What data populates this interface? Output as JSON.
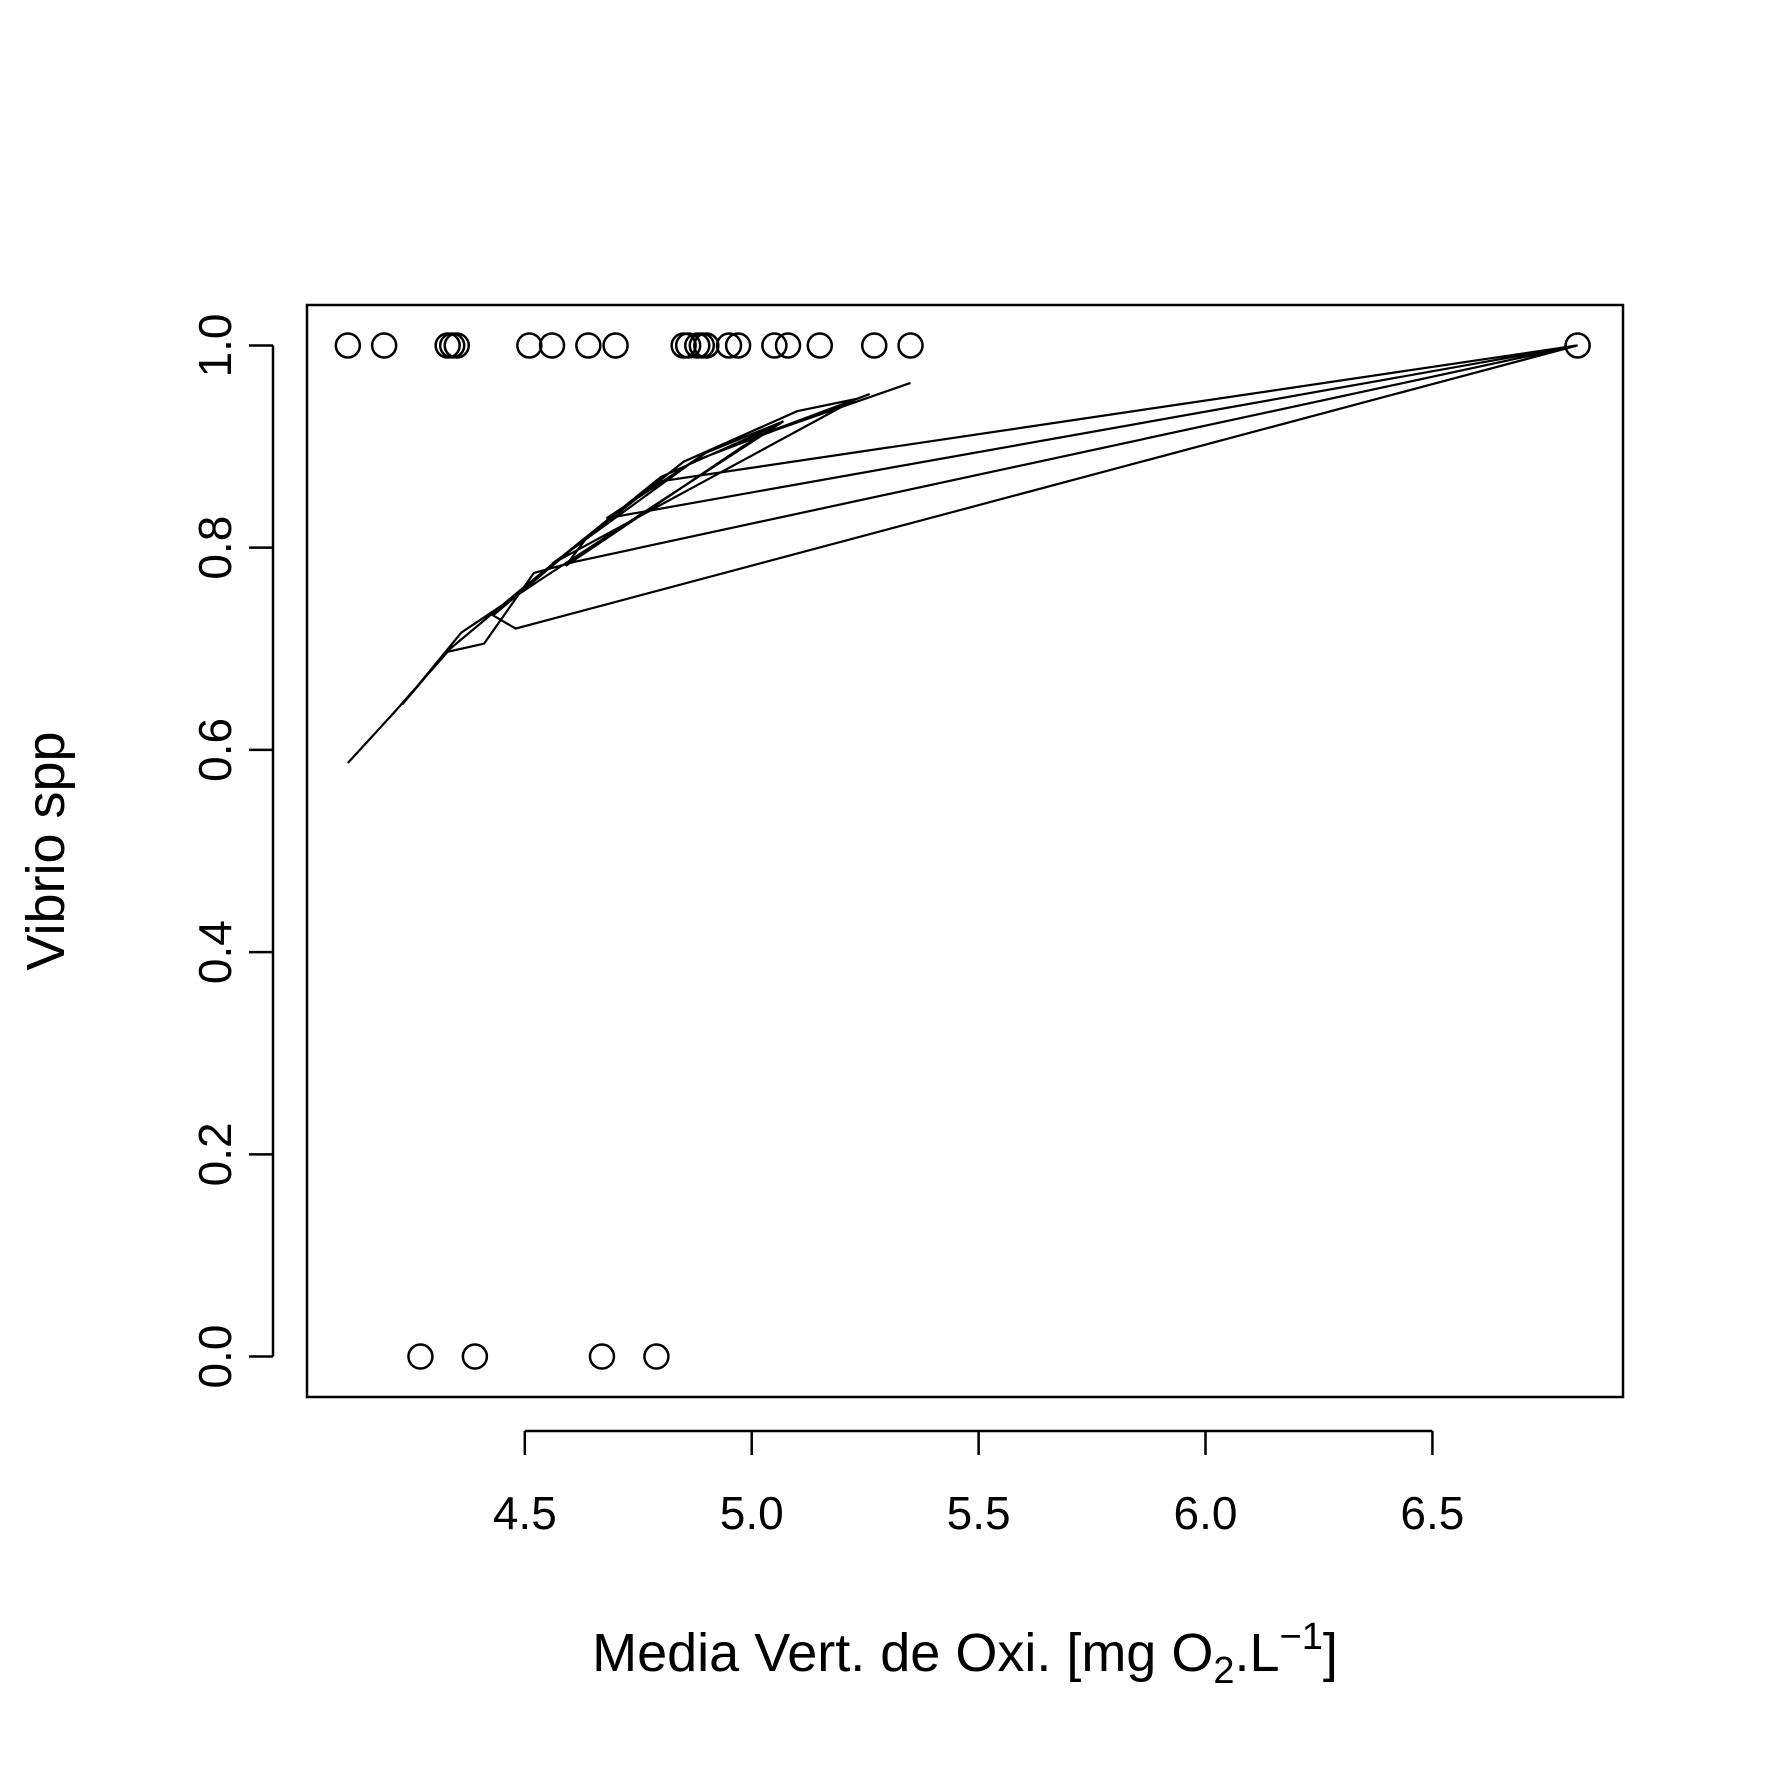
{
  "chart_data": {
    "type": "scatter",
    "title": "",
    "xlabel": {
      "main": "Media Vert. de Oxi. [mg O",
      "sub": "2",
      "mid": ".L",
      "sup": "−1",
      "end": "]"
    },
    "ylabel": "Vibrio spp",
    "xlim": [
      4.02,
      6.92
    ],
    "ylim": [
      -0.04,
      1.04
    ],
    "x_ticks": [
      4.5,
      5.0,
      5.5,
      6.0,
      6.5
    ],
    "x_tick_labels": [
      "4.5",
      "5.0",
      "5.5",
      "6.0",
      "6.5"
    ],
    "y_ticks": [
      0.0,
      0.2,
      0.4,
      0.6,
      0.8,
      1.0
    ],
    "y_tick_labels": [
      "0.0",
      "0.2",
      "0.4",
      "0.6",
      "0.8",
      "1.0"
    ],
    "grid": false,
    "legend": "none",
    "colors": {
      "points": "#000000",
      "line": "#000000",
      "axes": "#000000",
      "background": "#ffffff"
    },
    "points": [
      {
        "x": 4.11,
        "y": 1
      },
      {
        "x": 4.19,
        "y": 1
      },
      {
        "x": 4.33,
        "y": 1
      },
      {
        "x": 4.34,
        "y": 1
      },
      {
        "x": 4.35,
        "y": 1
      },
      {
        "x": 4.51,
        "y": 1
      },
      {
        "x": 4.56,
        "y": 1
      },
      {
        "x": 4.64,
        "y": 1
      },
      {
        "x": 4.7,
        "y": 1
      },
      {
        "x": 4.85,
        "y": 1
      },
      {
        "x": 4.86,
        "y": 1
      },
      {
        "x": 4.88,
        "y": 1
      },
      {
        "x": 4.89,
        "y": 1
      },
      {
        "x": 4.9,
        "y": 1
      },
      {
        "x": 4.95,
        "y": 1
      },
      {
        "x": 4.97,
        "y": 1
      },
      {
        "x": 5.05,
        "y": 1
      },
      {
        "x": 5.08,
        "y": 1
      },
      {
        "x": 5.15,
        "y": 1
      },
      {
        "x": 5.27,
        "y": 1
      },
      {
        "x": 5.35,
        "y": 1
      },
      {
        "x": 6.82,
        "y": 1
      },
      {
        "x": 4.27,
        "y": 0
      },
      {
        "x": 4.39,
        "y": 0
      },
      {
        "x": 4.67,
        "y": 0
      },
      {
        "x": 4.79,
        "y": 0
      }
    ],
    "fitted_line": [
      {
        "x": 4.11,
        "y": 0.587
      },
      {
        "x": 4.21,
        "y": 0.636
      },
      {
        "x": 4.33,
        "y": 0.697
      },
      {
        "x": 4.41,
        "y": 0.705
      },
      {
        "x": 4.52,
        "y": 0.775
      },
      {
        "x": 4.61,
        "y": 0.786
      },
      {
        "x": 6.82,
        "y": 1.0
      },
      {
        "x": 4.68,
        "y": 0.829
      },
      {
        "x": 4.9,
        "y": 0.894
      },
      {
        "x": 5.07,
        "y": 0.925
      },
      {
        "x": 4.54,
        "y": 0.77
      },
      {
        "x": 4.36,
        "y": 0.716
      },
      {
        "x": 4.23,
        "y": 0.645
      },
      {
        "x": 4.33,
        "y": 0.698
      },
      {
        "x": 4.49,
        "y": 0.758
      },
      {
        "x": 4.8,
        "y": 0.87
      },
      {
        "x": 5.06,
        "y": 0.922
      },
      {
        "x": 4.98,
        "y": 0.9
      },
      {
        "x": 4.59,
        "y": 0.782
      },
      {
        "x": 4.64,
        "y": 0.812
      },
      {
        "x": 4.43,
        "y": 0.733
      },
      {
        "x": 4.48,
        "y": 0.72
      },
      {
        "x": 6.82,
        "y": 1.0
      },
      {
        "x": 4.79,
        "y": 0.865
      },
      {
        "x": 4.62,
        "y": 0.804
      },
      {
        "x": 4.85,
        "y": 0.885
      },
      {
        "x": 5.1,
        "y": 0.935
      },
      {
        "x": 5.23,
        "y": 0.947
      },
      {
        "x": 4.56,
        "y": 0.784
      },
      {
        "x": 4.87,
        "y": 0.885
      },
      {
        "x": 5.26,
        "y": 0.952
      },
      {
        "x": 4.98,
        "y": 0.905
      },
      {
        "x": 5.35,
        "y": 0.963
      }
    ]
  }
}
